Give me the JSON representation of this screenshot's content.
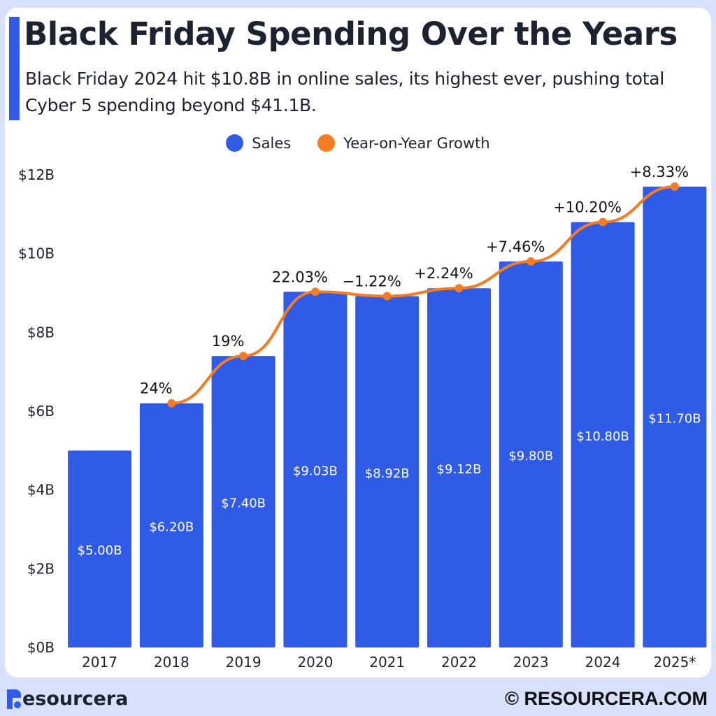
{
  "title": "Black Friday Spending Over the Years",
  "subtitle": "Black Friday 2024 hit $10.8B in online sales, its highest ever, pushing total Cyber 5 spending beyond $41.1B.",
  "colors": {
    "sales": "#2f5be6",
    "growth": "#f57c22",
    "background": "#d8e1fb"
  },
  "chart_data": {
    "type": "bar",
    "categories": [
      "2017",
      "2018",
      "2019",
      "2020",
      "2021",
      "2022",
      "2023",
      "2024",
      "2025*"
    ],
    "ylim": [
      0,
      12
    ],
    "yticks": [
      "$0B",
      "$2B",
      "$4B",
      "$6B",
      "$8B",
      "$10B",
      "$12B"
    ],
    "grid": false,
    "legend_placement": "top",
    "series": [
      {
        "name": "Sales",
        "type": "bar",
        "values": [
          5.0,
          6.2,
          7.4,
          9.03,
          8.92,
          9.12,
          9.8,
          10.8,
          11.7
        ],
        "labels": [
          "$5.00B",
          "$6.20B",
          "$7.40B",
          "$9.03B",
          "$8.92B",
          "$9.12B",
          "$9.80B",
          "$10.80B",
          "$11.70B"
        ]
      },
      {
        "name": "Year-on-Year Growth",
        "type": "line",
        "labels": [
          "",
          "24%",
          "19%",
          "22.03%",
          "−1.22%",
          "+2.24%",
          "+7.46%",
          "+10.20%",
          "+8.33%"
        ]
      }
    ]
  },
  "footer": {
    "brand": "esourcera",
    "copyright": "© RESOURCERA.COM"
  }
}
